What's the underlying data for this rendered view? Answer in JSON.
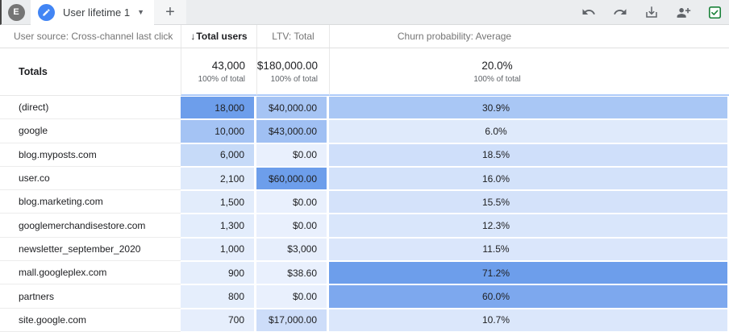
{
  "topbar": {
    "avatar_letter": "E",
    "tab_label": "User lifetime 1",
    "add_tab_label": "+",
    "action_icons": [
      "undo-icon",
      "redo-icon",
      "download-icon",
      "add-user-icon",
      "sheets-export-icon"
    ]
  },
  "header": {
    "dimension": "User source: Cross-channel last click",
    "users_sort": "↓",
    "users": "Total users",
    "ltv": "LTV: Total",
    "churn": "Churn probability: Average"
  },
  "totals": {
    "label": "Totals",
    "users": "43,000",
    "users_sub": "100% of total",
    "ltv": "$180,000.00",
    "ltv_sub": "100% of total",
    "churn": "20.0%",
    "churn_sub": "100% of total"
  },
  "rows": [
    {
      "label": "(direct)",
      "users": "18,000",
      "users_bg": "#6d9eeb",
      "ltv": "$40,000.00",
      "ltv_bg": "#a6c4f4",
      "churn": "30.9%",
      "churn_bg": "#a9c7f5"
    },
    {
      "label": "google",
      "users": "10,000",
      "users_bg": "#a4c3f4",
      "ltv": "$43,000.00",
      "ltv_bg": "#a0c0f3",
      "churn": "6.0%",
      "churn_bg": "#dfeafb"
    },
    {
      "label": "blog.myposts.com",
      "users": "6,000",
      "users_bg": "#c6daf8",
      "ltv": "$0.00",
      "ltv_bg": "#e9f0fd",
      "churn": "18.5%",
      "churn_bg": "#cfdffa"
    },
    {
      "label": "user.co",
      "users": "2,100",
      "users_bg": "#dfeafb",
      "ltv": "$60,000.00",
      "ltv_bg": "#6d9eeb",
      "churn": "16.0%",
      "churn_bg": "#d3e2fa"
    },
    {
      "label": "blog.marketing.com",
      "users": "1,500",
      "users_bg": "#e2ecfb",
      "ltv": "$0.00",
      "ltv_bg": "#e9f0fd",
      "churn": "15.5%",
      "churn_bg": "#d4e2fa"
    },
    {
      "label": "googlemerchandisestore.com",
      "users": "1,300",
      "users_bg": "#e3edfc",
      "ltv": "$0.00",
      "ltv_bg": "#e9f0fd",
      "churn": "12.3%",
      "churn_bg": "#d9e6fb"
    },
    {
      "label": "newsletter_september_2020",
      "users": "1,000",
      "users_bg": "#e4edfc",
      "ltv": "$3,000",
      "ltv_bg": "#e6eefc",
      "churn": "11.5%",
      "churn_bg": "#dae6fb"
    },
    {
      "label": "mall.googleplex.com",
      "users": "900",
      "users_bg": "#e5eefc",
      "ltv": "$38.60",
      "ltv_bg": "#e9f0fd",
      "churn": "71.2%",
      "churn_bg": "#6d9eeb"
    },
    {
      "label": "partners",
      "users": "800",
      "users_bg": "#e5eefc",
      "ltv": "$0.00",
      "ltv_bg": "#e9f0fd",
      "churn": "60.0%",
      "churn_bg": "#7da8ee"
    },
    {
      "label": "site.google.com",
      "users": "700",
      "users_bg": "#e6eefc",
      "ltv": "$17,000.00",
      "ltv_bg": "#cdddf9",
      "churn": "10.7%",
      "churn_bg": "#dbe7fb"
    }
  ],
  "colors": {
    "heat_max": "#6d9eeb",
    "totals_rule": "#aecbfa",
    "accent_blue": "#4285f4",
    "icon_gray": "#5f6368",
    "sheets_green": "#188038"
  }
}
